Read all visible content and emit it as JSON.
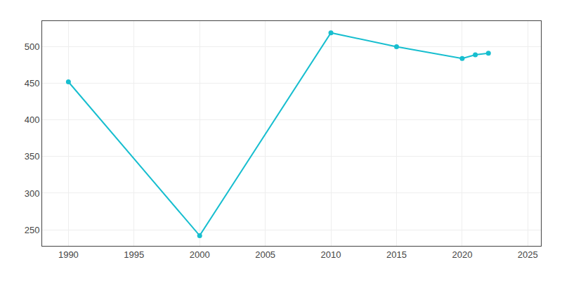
{
  "chart_data": {
    "type": "line",
    "x": [
      1990,
      2000,
      2010,
      2015,
      2020,
      2021,
      2022
    ],
    "values": [
      452,
      242,
      519,
      500,
      484,
      489,
      491
    ],
    "color": "#17becf",
    "marker": "circle",
    "xlim": [
      1988,
      2026
    ],
    "ylim": [
      228,
      535
    ],
    "xticks": [
      1990,
      1995,
      2000,
      2005,
      2010,
      2015,
      2020,
      2025
    ],
    "yticks": [
      250,
      300,
      350,
      400,
      450,
      500
    ],
    "grid": true
  }
}
